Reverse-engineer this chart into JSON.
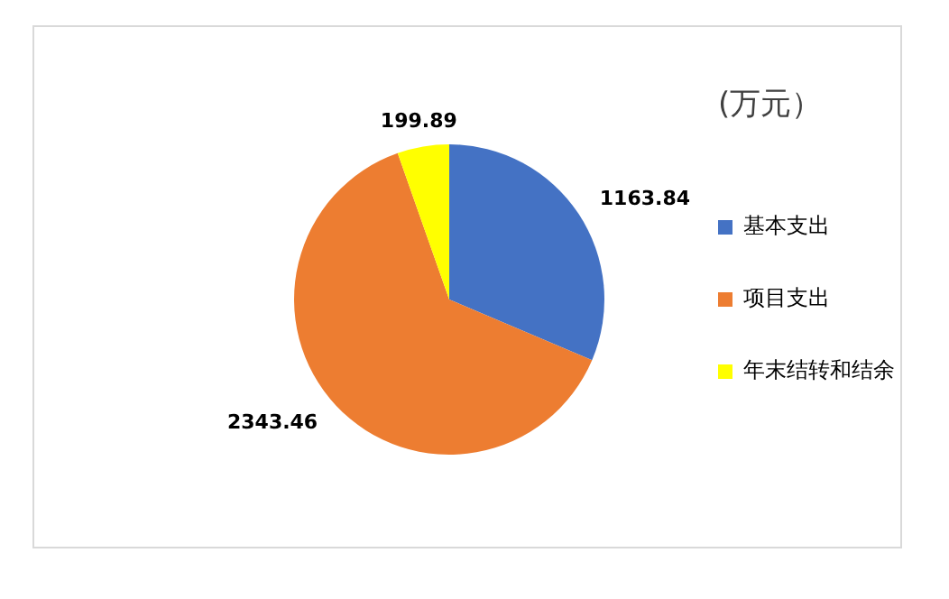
{
  "chart_data": {
    "type": "pie",
    "title": "(万元）",
    "categories": [
      "基本支出",
      "项目支出",
      "年末结转和结余"
    ],
    "values": [
      1163.84,
      2343.46,
      199.89
    ],
    "colors": [
      "#4472c4",
      "#ed7d31",
      "#ffff00"
    ],
    "data_labels": true,
    "legend": "right"
  }
}
